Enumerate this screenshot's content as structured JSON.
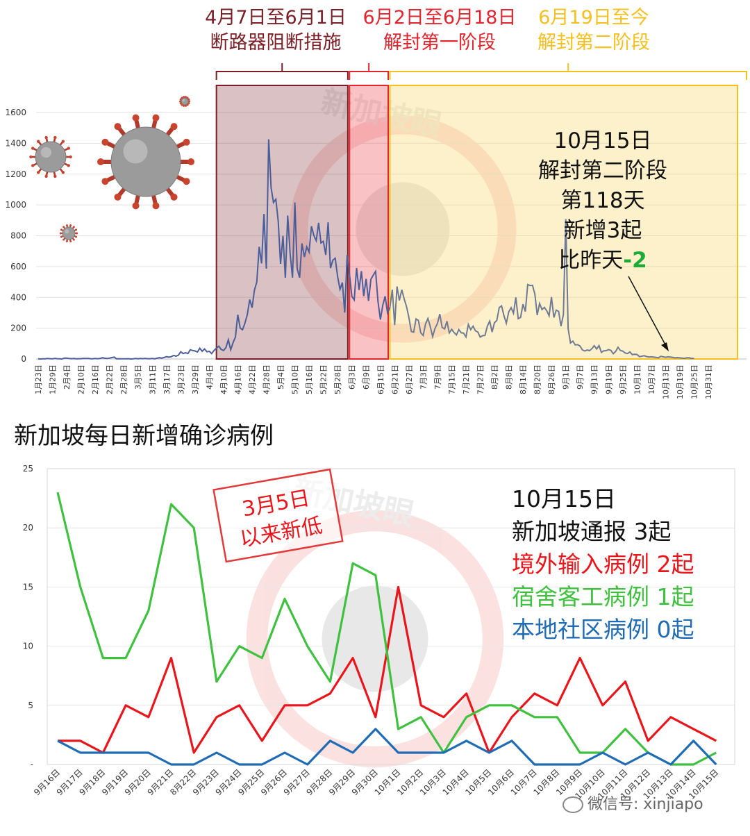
{
  "chart_data": [
    {
      "type": "line",
      "ylim": [
        0,
        1600
      ],
      "yticks": [
        0,
        200,
        400,
        600,
        800,
        1000,
        1200,
        1400,
        1600
      ],
      "x_labels": [
        "1月23日",
        "1月29日",
        "2月4日",
        "2月10日",
        "2月16日",
        "2月22日",
        "2月28日",
        "3月5日",
        "3月11日",
        "3月17日",
        "3月23日",
        "3月29日",
        "4月4日",
        "4月10日",
        "4月16日",
        "4月22日",
        "4月28日",
        "5月4日",
        "5月10日",
        "5月16日",
        "5月22日",
        "5月28日",
        "6月3日",
        "6月9日",
        "6月15日",
        "6月21日",
        "6月27日",
        "7月3日",
        "7月9日",
        "7月15日",
        "7月21日",
        "7月27日",
        "8月2日",
        "8月8日",
        "8月14日",
        "8月20日",
        "8月26日",
        "9月1日",
        "9月7日",
        "9月13日",
        "9月19日",
        "9月25日",
        "10月1日",
        "10月7日",
        "10月13日",
        "10月19日",
        "10月25日",
        "10月31日"
      ],
      "series": [
        {
          "color": "#4a5e9a",
          "values": [
            1,
            0,
            1,
            1,
            3,
            2,
            1,
            4,
            2,
            1,
            0,
            6,
            6,
            3,
            2,
            3,
            1,
            2,
            2,
            4,
            3,
            4,
            2,
            1,
            3,
            2,
            3,
            8,
            5,
            3,
            6,
            9,
            12,
            1,
            2,
            1,
            1,
            1,
            2,
            0,
            1,
            3,
            1,
            3,
            2,
            4,
            2,
            2,
            3,
            1,
            5,
            8,
            6,
            10,
            15,
            12,
            15,
            23,
            18,
            25,
            47,
            35,
            40,
            35,
            60,
            55,
            52,
            45,
            70,
            50,
            65,
            47,
            50,
            35,
            55,
            70,
            83,
            62,
            55,
            74,
            125,
            60,
            106,
            142,
            287,
            200,
            190,
            233,
            287,
            386,
            333,
            447,
            500,
            728,
            620,
            942,
            586,
            1426,
            1111,
            1016,
            1037,
            897,
            618,
            799,
            528,
            931,
            690,
            528,
            1016,
            584,
            528,
            750,
            662,
            728,
            694,
            862,
            801,
            768,
            884,
            753,
            764,
            675,
            887,
            590,
            641,
            654,
            533,
            452,
            496,
            301,
            675,
            549,
            406,
            383,
            591,
            448,
            570,
            408,
            520,
            377,
            518,
            544,
            569,
            373,
            256,
            349,
            407,
            300,
            335,
            450,
            220,
            470,
            380,
            450,
            390,
            340,
            269,
            178,
            174,
            260,
            250,
            170,
            153,
            227,
            263,
            210,
            145,
            200,
            230,
            292,
            205,
            195,
            245,
            169,
            193,
            172,
            156,
            191,
            170,
            168,
            143,
            225,
            190,
            213,
            183,
            175,
            142,
            151,
            153,
            213,
            246,
            175,
            235,
            250,
            334,
            345,
            281,
            232,
            306,
            333,
            297,
            400,
            262,
            270,
            356,
            308,
            483,
            477,
            478,
            422,
            285,
            360,
            321,
            335,
            313,
            281,
            402,
            269,
            317,
            309,
            213,
            288,
            908,
            198,
            104,
            116,
            91,
            93,
            84,
            59,
            52,
            58,
            54,
            67,
            86,
            65,
            87,
            43,
            53,
            54,
            61,
            56,
            34,
            49,
            76,
            55,
            51,
            39,
            35,
            46,
            28,
            31,
            29,
            15,
            18,
            21,
            16,
            13,
            14,
            12,
            10,
            8,
            17,
            14,
            11,
            14,
            12,
            10,
            7,
            9,
            7,
            6,
            4,
            8,
            7,
            3,
            4
          ]
        }
      ],
      "phases": [
        {
          "range": "4月7日至6月1日",
          "name": "断路器阻断措施",
          "color": "#7a1f26"
        },
        {
          "range": "6月2日至6月18日",
          "name": "解封第一阶段",
          "color": "#e0262e"
        },
        {
          "range": "6月19日至今",
          "name": "解封第二阶段",
          "color": "#f5c01f"
        }
      ],
      "annotation": {
        "l1": "10月15日",
        "l2": "解封第二阶段",
        "l3": "第118天",
        "l4": "新增3起",
        "l5a": "比昨天",
        "l5b": "-2"
      },
      "watermark": "新加坡眼"
    },
    {
      "type": "line",
      "title": "新加坡每日新增确诊病例",
      "ylim": [
        0,
        25
      ],
      "ytick_labels": [
        "-",
        "5",
        "10",
        "15",
        "20",
        "25"
      ],
      "x_labels": [
        "9月16日",
        "9月17日",
        "9月18日",
        "9月19日",
        "9月20日",
        "9月21日",
        "8月22日",
        "9月23日",
        "9月24日",
        "9月25日",
        "9月26日",
        "9月27日",
        "9月28日",
        "9月29日",
        "9月30日",
        "10月1日",
        "10月2日",
        "10月3日",
        "10月4日",
        "10月5日",
        "10月6日",
        "10月7日",
        "10月8日",
        "10月9日",
        "10月10日",
        "10月11日",
        "10月12日",
        "10月13日",
        "10月14日",
        "10月15日"
      ],
      "series": [
        {
          "name": "imported",
          "color": "#e8161b",
          "values": [
            2,
            2,
            1,
            5,
            4,
            9,
            1,
            4,
            5,
            2,
            5,
            5,
            6,
            9,
            4,
            15,
            5,
            4,
            6,
            1,
            4,
            6,
            5,
            9,
            5,
            7,
            2,
            4,
            3,
            2
          ]
        },
        {
          "name": "dorm",
          "color": "#3fc13f",
          "values": [
            23,
            15,
            9,
            9,
            13,
            22,
            20,
            7,
            10,
            9,
            14,
            10,
            7,
            17,
            16,
            3,
            4,
            1,
            4,
            5,
            5,
            4,
            4,
            1,
            1,
            3,
            1,
            0,
            0,
            1
          ]
        },
        {
          "name": "community",
          "color": "#1f6bb4",
          "values": [
            2,
            1,
            1,
            1,
            1,
            0,
            0,
            1,
            0,
            0,
            1,
            0,
            2,
            1,
            3,
            1,
            1,
            1,
            2,
            1,
            2,
            0,
            0,
            0,
            1,
            0,
            1,
            0,
            2,
            0
          ]
        }
      ],
      "stamp": {
        "l1": "3月5日",
        "l2": "以来新低"
      },
      "legend": {
        "date": "10月15日",
        "total": "新加坡通报 3起",
        "imported": "境外输入病例 2起",
        "dorm": "宿舍客工病例 1起",
        "community": "本地社区病例 0起"
      },
      "watermark": "新加坡眼"
    }
  ],
  "footer": {
    "wechat_id": "微信号: xinjiapo"
  }
}
